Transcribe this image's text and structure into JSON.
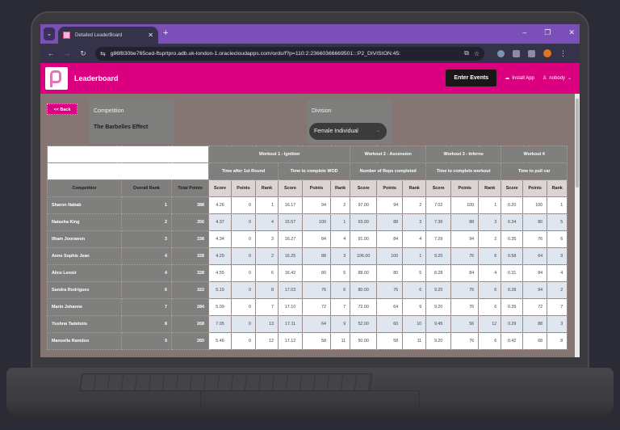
{
  "browser": {
    "tab_title": "Detailed LeaderBoard",
    "url": "g86f830be765ced-ftsprtpro.adb.uk-london-1.oraclecloudapps.com/ords/f?p=110:2:23660366669501:::P2_DIVISION:45:",
    "icons": {
      "tab_list": "chevron-down-icon",
      "tab_close": "close-icon",
      "new_tab": "plus-icon",
      "back": "arrow-left-icon",
      "forward": "arrow-right-icon",
      "reload": "reload-icon",
      "site_info": "tune-icon",
      "install": "install-icon",
      "bookmark": "star-icon",
      "menu": "kebab-menu-icon"
    },
    "glyphs": {
      "tab_list": "⌄",
      "tab_close": "✕",
      "new_tab": "+",
      "back": "←",
      "forward": "→",
      "reload": "↻",
      "site_info": "⇆",
      "install": "⧉",
      "bookmark": "☆",
      "minimize": "–",
      "maximize": "❐",
      "close": "✕",
      "menu": "⋮"
    }
  },
  "app": {
    "title": "Leaderboard",
    "brand_color": "#db0080",
    "enter_events_label": "Enter Events",
    "install_app_label": "Install App",
    "install_glyph": "☁",
    "user_glyph": "♙",
    "user_name": "nobody",
    "user_chevron": "⌄"
  },
  "filters": {
    "back_label": "<< Back",
    "competition_label": "Competition",
    "competition_value": "The Barbelles Effect",
    "division_label": "Division",
    "division_value": "Female Individual",
    "division_chevron": "⌄"
  },
  "table": {
    "workouts": [
      {
        "name": "Workout 1 - Ignition",
        "events": [
          "Time after 1st Round",
          "Time to complete WOD"
        ]
      },
      {
        "name": "Workout 2 - Ascension",
        "events": [
          "Number of Reps completed"
        ]
      },
      {
        "name": "Workout 3 - Inferno",
        "events": [
          "Time to complete workout"
        ]
      },
      {
        "name": "Workout 4",
        "events": [
          "Time to pull car"
        ]
      }
    ],
    "col_headers": {
      "competitor": "Competitior",
      "overall_rank": "Overall Rank",
      "total_points": "Total Points"
    },
    "sub_headers": {
      "score": "Score",
      "points": "Points",
      "rank": "Rank"
    },
    "rows": [
      {
        "competitor": "Sharon Nabab",
        "overall_rank": "1",
        "total_points": "388",
        "e": [
          [
            "4.26",
            "0",
            "1"
          ],
          [
            "16.17",
            "94",
            "2"
          ],
          [
            "97.00",
            "94",
            "2"
          ],
          [
            "7.02",
            "100",
            "1"
          ],
          [
            "0.20",
            "100",
            "1"
          ]
        ]
      },
      {
        "competitor": "Natasha King",
        "overall_rank": "2",
        "total_points": "356",
        "e": [
          [
            "4.37",
            "0",
            "4"
          ],
          [
            "15.57",
            "100",
            "1"
          ],
          [
            "93.00",
            "88",
            "3"
          ],
          [
            "7.36",
            "88",
            "3"
          ],
          [
            "0.34",
            "80",
            "5"
          ]
        ]
      },
      {
        "competitor": "Ilham Joorawon",
        "overall_rank": "3",
        "total_points": "338",
        "e": [
          [
            "4.34",
            "0",
            "3"
          ],
          [
            "16.27",
            "84",
            "4"
          ],
          [
            "91.00",
            "84",
            "4"
          ],
          [
            "7.29",
            "94",
            "2"
          ],
          [
            "0.35",
            "76",
            "6"
          ]
        ]
      },
      {
        "competitor": "Anne Sophie Jean",
        "overall_rank": "4",
        "total_points": "328",
        "e": [
          [
            "4.29",
            "0",
            "2"
          ],
          [
            "16.25",
            "88",
            "3"
          ],
          [
            "106.00",
            "100",
            "1"
          ],
          [
            "9.20",
            "76",
            "6"
          ],
          [
            "0.58",
            "64",
            "9"
          ]
        ]
      },
      {
        "competitor": "Alice Lenoir",
        "overall_rank": "4",
        "total_points": "328",
        "e": [
          [
            "4.55",
            "0",
            "6"
          ],
          [
            "16.42",
            "80",
            "5"
          ],
          [
            "88.00",
            "80",
            "5"
          ],
          [
            "8.28",
            "84",
            "4"
          ],
          [
            "0.31",
            "84",
            "4"
          ]
        ]
      },
      {
        "competitor": "Sandra Rodrigues",
        "overall_rank": "6",
        "total_points": "322",
        "e": [
          [
            "5.19",
            "0",
            "8"
          ],
          [
            "17.03",
            "76",
            "6"
          ],
          [
            "80.00",
            "76",
            "6"
          ],
          [
            "9.20",
            "76",
            "6"
          ],
          [
            "0.28",
            "94",
            "2"
          ]
        ]
      },
      {
        "competitor": "Marin Johanne",
        "overall_rank": "7",
        "total_points": "284",
        "e": [
          [
            "5.09",
            "0",
            "7"
          ],
          [
            "17.10",
            "72",
            "7"
          ],
          [
            "72.00",
            "64",
            "9"
          ],
          [
            "9.20",
            "76",
            "6"
          ],
          [
            "0.39",
            "72",
            "7"
          ]
        ]
      },
      {
        "competitor": "Yushna Tadebois",
        "overall_rank": "8",
        "total_points": "268",
        "e": [
          [
            "7.05",
            "0",
            "13"
          ],
          [
            "17.11",
            "64",
            "9"
          ],
          [
            "52.00",
            "60",
            "10"
          ],
          [
            "9.45",
            "56",
            "12"
          ],
          [
            "0.29",
            "88",
            "3"
          ]
        ]
      },
      {
        "competitor": "Manoella Ramdoo",
        "overall_rank": "9",
        "total_points": "260",
        "e": [
          [
            "5.46",
            "0",
            "12"
          ],
          [
            "17.12",
            "58",
            "11"
          ],
          [
            "50.00",
            "58",
            "11"
          ],
          [
            "9.20",
            "76",
            "6"
          ],
          [
            "0.42",
            "68",
            "8"
          ]
        ]
      }
    ]
  }
}
